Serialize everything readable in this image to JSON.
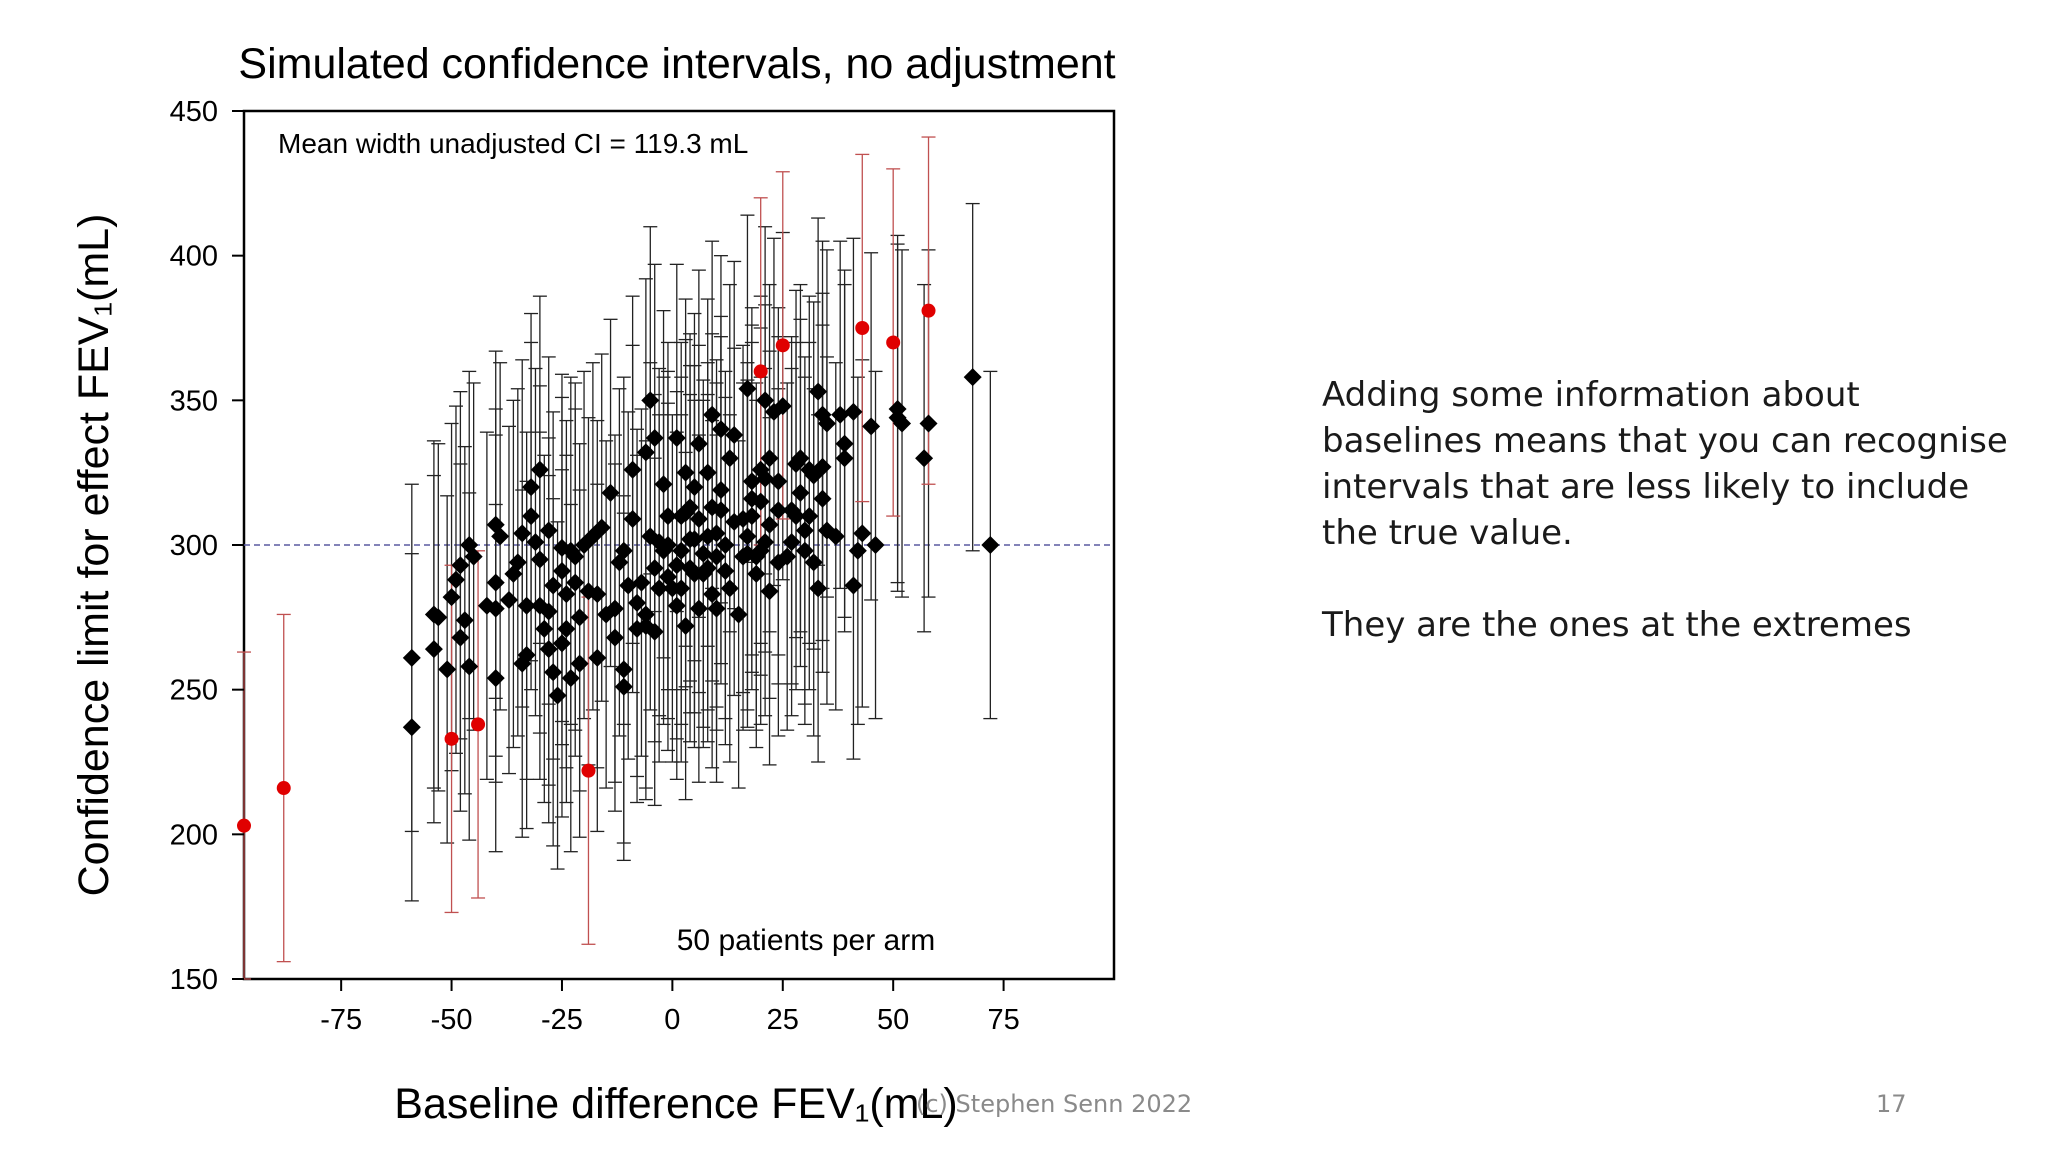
{
  "slide": {
    "notes": [
      "Adding some information about baselines means that you can recognise intervals that are less likely to include the true value.",
      "They are the ones at the extremes"
    ],
    "copyright": "(c) Stephen Senn 2022",
    "page_number": "17"
  },
  "chart_data": {
    "type": "scatter",
    "title": "Simulated confidence intervals, no adjustment",
    "xlabel": "Baseline difference FEV₁(mL)",
    "ylabel": "Confidence limit for effect FEV₁(mL)",
    "xlim": [
      -97,
      100
    ],
    "ylim": [
      150,
      450
    ],
    "xticks": [
      -75,
      -50,
      -25,
      0,
      25,
      50,
      75
    ],
    "yticks": [
      150,
      200,
      250,
      300,
      350,
      400,
      450
    ],
    "reference_line": {
      "y": 300,
      "style": "dashed",
      "color": "#5a5aa0"
    },
    "annotations": [
      {
        "text": "Mean width unadjusted CI = 119.3 mL",
        "position": "top-left"
      },
      {
        "text": "50 patients per arm",
        "position": "bottom-center"
      }
    ],
    "ci_half_width": 60,
    "colors": {
      "covering": "#000000",
      "missing": "#e00000",
      "missing_bar": "#c05050"
    },
    "series": [
      {
        "marker": "diamond",
        "color": "#000000",
        "points": [
          [
            -59,
            261
          ],
          [
            -59,
            237
          ],
          [
            -54,
            276
          ],
          [
            -54,
            264
          ],
          [
            -53,
            275
          ],
          [
            -51,
            257
          ],
          [
            -50,
            282
          ],
          [
            -49,
            288
          ],
          [
            -48,
            268
          ],
          [
            -48,
            293
          ],
          [
            -47,
            274
          ],
          [
            -46,
            300
          ],
          [
            -46,
            258
          ],
          [
            -45,
            296
          ],
          [
            -42,
            279
          ],
          [
            -40,
            287
          ],
          [
            -40,
            278
          ],
          [
            -40,
            254
          ],
          [
            -40,
            307
          ],
          [
            -39,
            303
          ],
          [
            -37,
            281
          ],
          [
            -36,
            290
          ],
          [
            -35,
            294
          ],
          [
            -34,
            304
          ],
          [
            -34,
            259
          ],
          [
            -33,
            262
          ],
          [
            -33,
            279
          ],
          [
            -32,
            310
          ],
          [
            -32,
            320
          ],
          [
            -31,
            301
          ],
          [
            -30,
            279
          ],
          [
            -30,
            295
          ],
          [
            -30,
            326
          ],
          [
            -29,
            271
          ],
          [
            -28,
            277
          ],
          [
            -28,
            305
          ],
          [
            -28,
            264
          ],
          [
            -27,
            256
          ],
          [
            -27,
            286
          ],
          [
            -26,
            248
          ],
          [
            -25,
            291
          ],
          [
            -25,
            266
          ],
          [
            -25,
            299
          ],
          [
            -24,
            283
          ],
          [
            -24,
            271
          ],
          [
            -23,
            298
          ],
          [
            -23,
            254
          ],
          [
            -22,
            296
          ],
          [
            -22,
            287
          ],
          [
            -21,
            259
          ],
          [
            -21,
            275
          ],
          [
            -20,
            300
          ],
          [
            -19,
            284
          ],
          [
            -18,
            303
          ],
          [
            -17,
            283
          ],
          [
            -17,
            261
          ],
          [
            -16,
            306
          ],
          [
            -15,
            276
          ],
          [
            -14,
            318
          ],
          [
            -13,
            278
          ],
          [
            -13,
            268
          ],
          [
            -12,
            294
          ],
          [
            -11,
            298
          ],
          [
            -11,
            257
          ],
          [
            -11,
            251
          ],
          [
            -10,
            286
          ],
          [
            -9,
            309
          ],
          [
            -9,
            326
          ],
          [
            -8,
            280
          ],
          [
            -8,
            271
          ],
          [
            -7,
            287
          ],
          [
            -6,
            272
          ],
          [
            -6,
            276
          ],
          [
            -6,
            332
          ],
          [
            -5,
            303
          ],
          [
            -5,
            350
          ],
          [
            -4,
            337
          ],
          [
            -4,
            292
          ],
          [
            -4,
            270
          ],
          [
            -3,
            301
          ],
          [
            -3,
            285
          ],
          [
            -2,
            298
          ],
          [
            -2,
            321
          ],
          [
            -1,
            310
          ],
          [
            -1,
            289
          ],
          [
            -1,
            300
          ],
          [
            0,
            285
          ],
          [
            1,
            337
          ],
          [
            1,
            293
          ],
          [
            1,
            279
          ],
          [
            2,
            310
          ],
          [
            2,
            298
          ],
          [
            2,
            285
          ],
          [
            3,
            311
          ],
          [
            3,
            325
          ],
          [
            3,
            272
          ],
          [
            4,
            302
          ],
          [
            4,
            292
          ],
          [
            4,
            313
          ],
          [
            5,
            290
          ],
          [
            5,
            320
          ],
          [
            5,
            302
          ],
          [
            6,
            309
          ],
          [
            6,
            278
          ],
          [
            6,
            335
          ],
          [
            7,
            297
          ],
          [
            7,
            290
          ],
          [
            8,
            303
          ],
          [
            8,
            325
          ],
          [
            8,
            292
          ],
          [
            9,
            283
          ],
          [
            9,
            313
          ],
          [
            9,
            345
          ],
          [
            10,
            304
          ],
          [
            10,
            278
          ],
          [
            10,
            296
          ],
          [
            11,
            340
          ],
          [
            11,
            319
          ],
          [
            11,
            312
          ],
          [
            12,
            300
          ],
          [
            12,
            291
          ],
          [
            13,
            330
          ],
          [
            13,
            285
          ],
          [
            14,
            338
          ],
          [
            14,
            308
          ],
          [
            15,
            276
          ],
          [
            16,
            309
          ],
          [
            16,
            296
          ],
          [
            17,
            354
          ],
          [
            17,
            303
          ],
          [
            17,
            297
          ],
          [
            18,
            310
          ],
          [
            18,
            322
          ],
          [
            18,
            316
          ],
          [
            19,
            290
          ],
          [
            19,
            296
          ],
          [
            20,
            298
          ],
          [
            20,
            315
          ],
          [
            20,
            326
          ],
          [
            21,
            350
          ],
          [
            21,
            323
          ],
          [
            21,
            301
          ],
          [
            22,
            307
          ],
          [
            22,
            284
          ],
          [
            22,
            330
          ],
          [
            23,
            346
          ],
          [
            24,
            294
          ],
          [
            24,
            312
          ],
          [
            24,
            322
          ],
          [
            25,
            348
          ],
          [
            26,
            296
          ],
          [
            27,
            301
          ],
          [
            27,
            312
          ],
          [
            28,
            328
          ],
          [
            28,
            310
          ],
          [
            29,
            318
          ],
          [
            29,
            330
          ],
          [
            30,
            305
          ],
          [
            30,
            298
          ],
          [
            31,
            326
          ],
          [
            31,
            310
          ],
          [
            32,
            294
          ],
          [
            32,
            324
          ],
          [
            33,
            353
          ],
          [
            33,
            285
          ],
          [
            34,
            316
          ],
          [
            34,
            327
          ],
          [
            34,
            345
          ],
          [
            35,
            305
          ],
          [
            35,
            342
          ],
          [
            37,
            303
          ],
          [
            38,
            345
          ],
          [
            39,
            335
          ],
          [
            39,
            330
          ],
          [
            41,
            286
          ],
          [
            41,
            346
          ],
          [
            42,
            298
          ],
          [
            43,
            304
          ],
          [
            45,
            341
          ],
          [
            46,
            300
          ],
          [
            51,
            344
          ],
          [
            51,
            347
          ],
          [
            52,
            342
          ],
          [
            57,
            330
          ],
          [
            58,
            342
          ],
          [
            68,
            358
          ],
          [
            72,
            300
          ]
        ]
      },
      {
        "marker": "circle",
        "color": "#e00000",
        "points": [
          [
            -97,
            203
          ],
          [
            -88,
            216
          ],
          [
            -50,
            233
          ],
          [
            -44,
            238
          ],
          [
            -19,
            222
          ],
          [
            20,
            360
          ],
          [
            25,
            369
          ],
          [
            43,
            375
          ],
          [
            50,
            370
          ],
          [
            58,
            381
          ]
        ]
      }
    ]
  }
}
